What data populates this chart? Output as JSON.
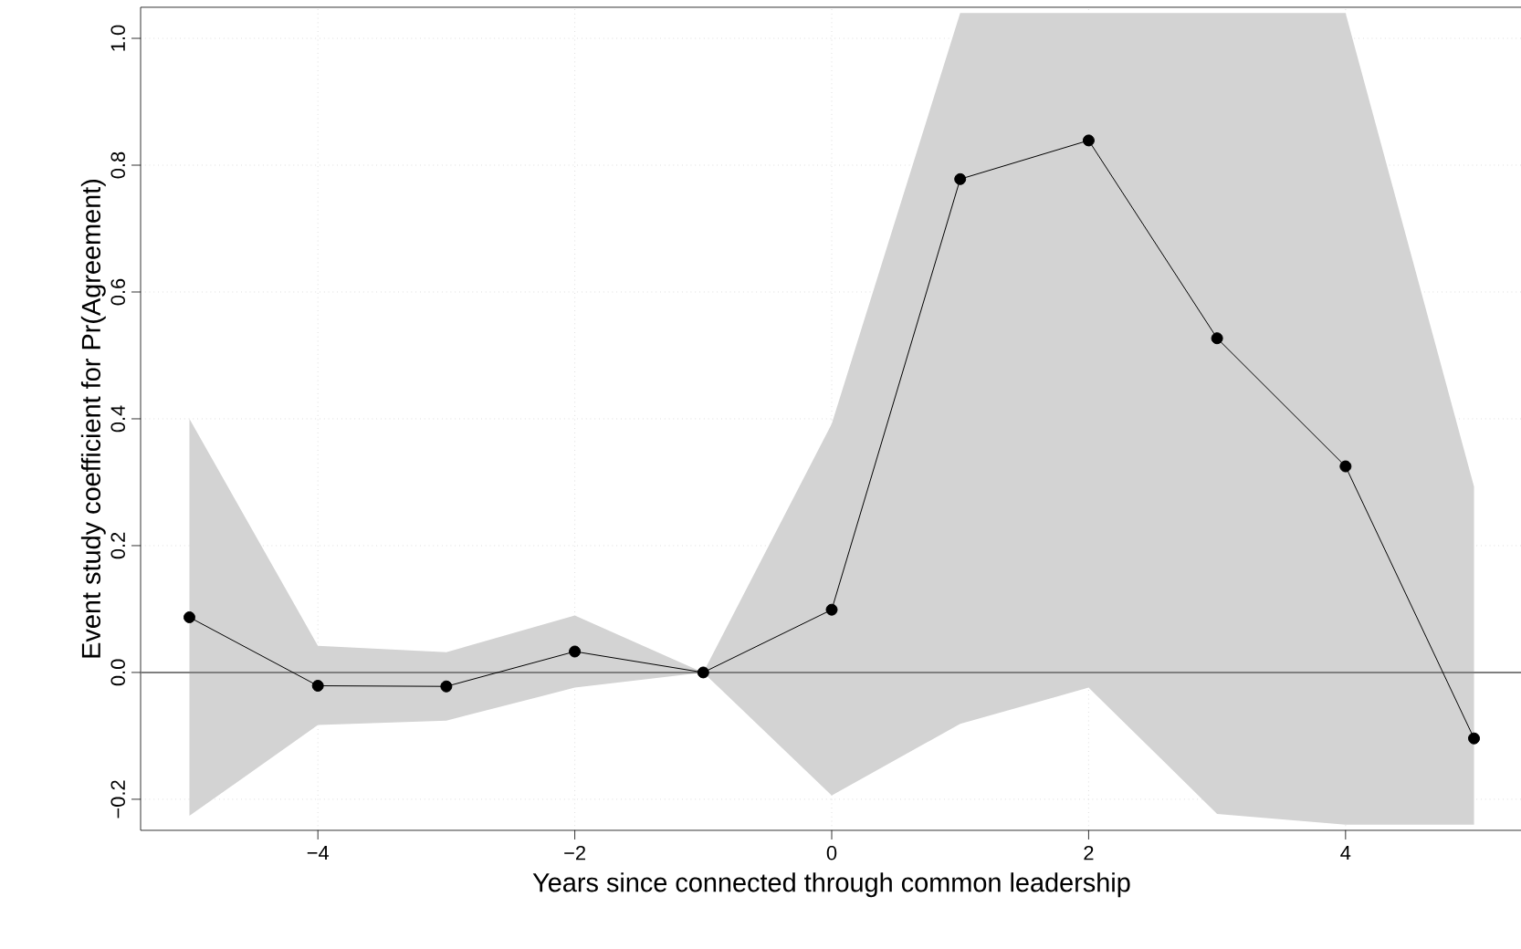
{
  "chart_data": {
    "type": "line",
    "xlabel": "Years since connected through common leadership",
    "ylabel": "Event study coefficient for Pr(Agreement)",
    "xlim": [
      -5.38,
      5.38
    ],
    "ylim": [
      -0.249,
      1.049
    ],
    "xticks": [
      {
        "value": -4,
        "label": "−4"
      },
      {
        "value": -2,
        "label": "−2"
      },
      {
        "value": 0,
        "label": "0"
      },
      {
        "value": 2,
        "label": "2"
      },
      {
        "value": 4,
        "label": "4"
      }
    ],
    "yticks": [
      {
        "value": -0.2,
        "label": "−0.2"
      },
      {
        "value": 0,
        "label": "0.0"
      },
      {
        "value": 0.2,
        "label": "0.2"
      },
      {
        "value": 0.4,
        "label": "0.4"
      },
      {
        "value": 0.6,
        "label": "0.6"
      },
      {
        "value": 0.8,
        "label": "0.8"
      },
      {
        "value": 1.0,
        "label": "1.0"
      }
    ],
    "grid": true,
    "marker": "circle",
    "line_style": "solid",
    "ref_lines": [
      {
        "axis": "y",
        "value": 0,
        "color": "#7f7f7f"
      }
    ],
    "series": [
      {
        "color": "#000000",
        "x": [
          -5,
          -4,
          -3,
          -2,
          -1,
          0,
          1,
          2,
          3,
          4,
          5
        ],
        "values": [
          0.087,
          -0.021,
          -0.022,
          0.033,
          0,
          0.099,
          0.778,
          0.839,
          0.527,
          0.325,
          -0.104
        ],
        "lower": [
          -0.226,
          -0.083,
          -0.076,
          -0.024,
          0,
          -0.194,
          -0.081,
          -0.024,
          -0.223,
          -0.24,
          -0.24
        ],
        "upper": [
          0.4,
          0.042,
          0.032,
          0.09,
          0,
          0.392,
          1.04,
          1.04,
          1.04,
          1.04,
          0.293
        ]
      }
    ]
  }
}
